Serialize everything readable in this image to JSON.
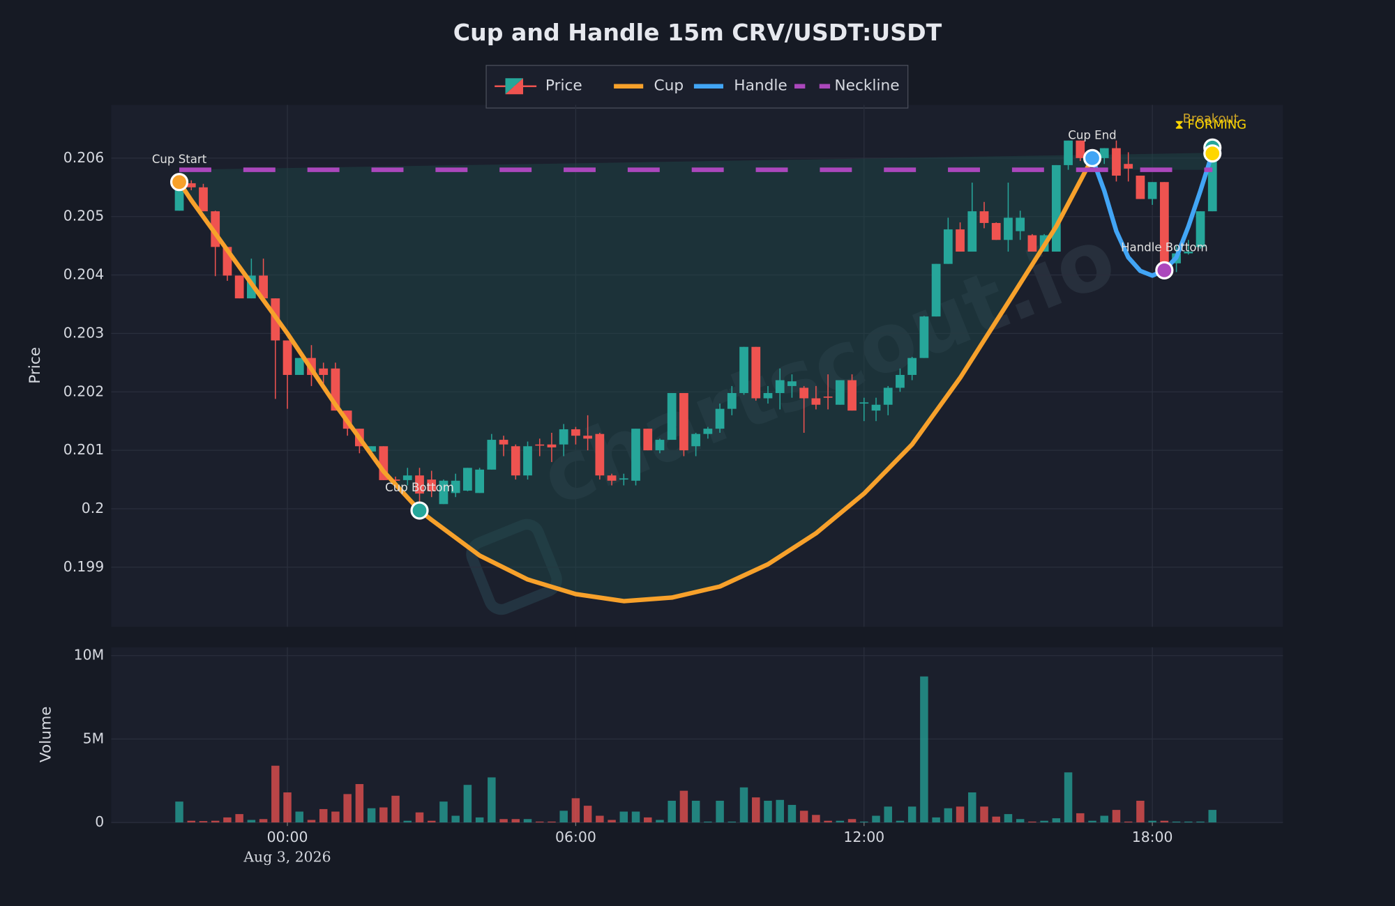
{
  "chart_data": {
    "type": "candlestick",
    "title": "Cup and Handle 15m CRV/USDT:USDT",
    "ylabel": "Price",
    "watermark": "chartscout.io",
    "x_sublabel": "Aug 3, 2026",
    "grid": true,
    "xlim": [
      "2026-08-02 20:20",
      "2026-08-03 20:43"
    ],
    "xticks": [
      {
        "value": "2026-08-03 00:00",
        "label": "00:00"
      },
      {
        "value": "2026-08-03 06:00",
        "label": "06:00"
      },
      {
        "value": "2026-08-03 12:00",
        "label": "12:00"
      },
      {
        "value": "2026-08-03 18:00",
        "label": "18:00"
      }
    ],
    "ylim": [
      0.19798,
      0.20691
    ],
    "yticks": [
      0.199,
      0.2,
      0.201,
      0.202,
      0.203,
      0.204,
      0.205,
      0.206
    ],
    "x": [
      "2026-08-02 21:45",
      "2026-08-02 22:00",
      "2026-08-02 22:15",
      "2026-08-02 22:30",
      "2026-08-02 22:45",
      "2026-08-02 23:00",
      "2026-08-02 23:15",
      "2026-08-02 23:30",
      "2026-08-02 23:45",
      "2026-08-03 00:00",
      "2026-08-03 00:15",
      "2026-08-03 00:30",
      "2026-08-03 00:45",
      "2026-08-03 01:00",
      "2026-08-03 01:15",
      "2026-08-03 01:30",
      "2026-08-03 01:45",
      "2026-08-03 02:00",
      "2026-08-03 02:15",
      "2026-08-03 02:30",
      "2026-08-03 02:45",
      "2026-08-03 03:00",
      "2026-08-03 03:15",
      "2026-08-03 03:30",
      "2026-08-03 03:45",
      "2026-08-03 04:00",
      "2026-08-03 04:15",
      "2026-08-03 04:30",
      "2026-08-03 04:45",
      "2026-08-03 05:00",
      "2026-08-03 05:15",
      "2026-08-03 05:30",
      "2026-08-03 05:45",
      "2026-08-03 06:00",
      "2026-08-03 06:15",
      "2026-08-03 06:30",
      "2026-08-03 06:45",
      "2026-08-03 07:00",
      "2026-08-03 07:15",
      "2026-08-03 07:30",
      "2026-08-03 07:45",
      "2026-08-03 08:00",
      "2026-08-03 08:15",
      "2026-08-03 08:30",
      "2026-08-03 08:45",
      "2026-08-03 09:00",
      "2026-08-03 09:15",
      "2026-08-03 09:30",
      "2026-08-03 09:45",
      "2026-08-03 10:00",
      "2026-08-03 10:15",
      "2026-08-03 10:30",
      "2026-08-03 10:45",
      "2026-08-03 11:00",
      "2026-08-03 11:15",
      "2026-08-03 11:30",
      "2026-08-03 11:45",
      "2026-08-03 12:00",
      "2026-08-03 12:15",
      "2026-08-03 12:30",
      "2026-08-03 12:45",
      "2026-08-03 13:00",
      "2026-08-03 13:15",
      "2026-08-03 13:30",
      "2026-08-03 13:45",
      "2026-08-03 14:00",
      "2026-08-03 14:15",
      "2026-08-03 14:30",
      "2026-08-03 14:45",
      "2026-08-03 15:00",
      "2026-08-03 15:15",
      "2026-08-03 15:30",
      "2026-08-03 15:45",
      "2026-08-03 16:00",
      "2026-08-03 16:15",
      "2026-08-03 16:30",
      "2026-08-03 16:45",
      "2026-08-03 17:00",
      "2026-08-03 17:15",
      "2026-08-03 17:30",
      "2026-08-03 17:45",
      "2026-08-03 18:00",
      "2026-08-03 18:15",
      "2026-08-03 18:30",
      "2026-08-03 18:45",
      "2026-08-03 19:00",
      "2026-08-03 19:15"
    ],
    "series": [
      {
        "name": "Price",
        "up_color": "#26a69a",
        "down_color": "#ef5350",
        "open": [
          0.2051,
          0.20557,
          0.2055,
          0.20509,
          0.20448,
          0.20399,
          0.2036,
          0.20399,
          0.2036,
          0.20288,
          0.20229,
          0.20258,
          0.2024,
          0.2024,
          0.20168,
          0.20137,
          0.20098,
          0.20107,
          0.2005,
          0.20049,
          0.20057,
          0.2005,
          0.20008,
          0.20027,
          0.20031,
          0.20027,
          0.20067,
          0.20118,
          0.20107,
          0.20057,
          0.2011,
          0.2011,
          0.2011,
          0.20136,
          0.20125,
          0.20128,
          0.20057,
          0.2005,
          0.20048,
          0.20137,
          0.201,
          0.20118,
          0.20198,
          0.20107,
          0.20128,
          0.20137,
          0.20171,
          0.20198,
          0.20277,
          0.20189,
          0.20198,
          0.2021,
          0.20207,
          0.20189,
          0.20192,
          0.20178,
          0.2022,
          0.2018,
          0.20168,
          0.20178,
          0.20207,
          0.20229,
          0.20258,
          0.20329,
          0.20419,
          0.20478,
          0.2044,
          0.20509,
          0.20489,
          0.2046,
          0.20475,
          0.20468,
          0.2044,
          0.2044,
          0.20588,
          0.2063,
          0.20598,
          0.206,
          0.20617,
          0.2059,
          0.2057,
          0.2053,
          0.20559,
          0.2042,
          0.20437,
          0.20448,
          0.20509
        ],
        "high": [
          0.2056,
          0.20562,
          0.20556,
          0.2051,
          0.20448,
          0.20399,
          0.20428,
          0.20428,
          0.2036,
          0.20288,
          0.20258,
          0.2028,
          0.2025,
          0.2025,
          0.20168,
          0.20137,
          0.20107,
          0.20107,
          0.20055,
          0.2007,
          0.2007,
          0.20065,
          0.2005,
          0.2006,
          0.2007,
          0.2007,
          0.20128,
          0.20125,
          0.2011,
          0.20115,
          0.2012,
          0.2013,
          0.20145,
          0.2014,
          0.2016,
          0.2013,
          0.2006,
          0.2006,
          0.20137,
          0.20137,
          0.2012,
          0.20198,
          0.20198,
          0.2013,
          0.2014,
          0.2018,
          0.2021,
          0.20277,
          0.20277,
          0.2021,
          0.2024,
          0.2023,
          0.2021,
          0.2021,
          0.2023,
          0.2022,
          0.2023,
          0.2019,
          0.2019,
          0.2021,
          0.2024,
          0.2026,
          0.2033,
          0.20419,
          0.20498,
          0.2049,
          0.20558,
          0.20525,
          0.2049,
          0.20558,
          0.2051,
          0.2047,
          0.2047,
          0.20588,
          0.2063,
          0.2063,
          0.2061,
          0.20617,
          0.2063,
          0.2061,
          0.2057,
          0.20559,
          0.20559,
          0.2045,
          0.2046,
          0.20509,
          0.20618
        ],
        "low": [
          0.2051,
          0.20545,
          0.20509,
          0.20398,
          0.2039,
          0.2036,
          0.2036,
          0.2036,
          0.20188,
          0.20171,
          0.20229,
          0.2021,
          0.2021,
          0.20168,
          0.20125,
          0.20095,
          0.2009,
          0.20049,
          0.20045,
          0.2004,
          0.2,
          0.2002,
          0.20008,
          0.2002,
          0.2003,
          0.20027,
          0.20067,
          0.2009,
          0.2005,
          0.2005,
          0.2009,
          0.2008,
          0.2009,
          0.2011,
          0.201,
          0.2005,
          0.2004,
          0.2004,
          0.2004,
          0.201,
          0.20095,
          0.20118,
          0.2009,
          0.2009,
          0.2012,
          0.2013,
          0.2016,
          0.20195,
          0.20185,
          0.2018,
          0.2017,
          0.2019,
          0.2013,
          0.2017,
          0.2017,
          0.20178,
          0.20168,
          0.2015,
          0.2015,
          0.2016,
          0.202,
          0.2022,
          0.20258,
          0.20329,
          0.20419,
          0.2044,
          0.2044,
          0.2048,
          0.2046,
          0.2044,
          0.2046,
          0.2044,
          0.2044,
          0.2044,
          0.2058,
          0.20595,
          0.2059,
          0.2059,
          0.2056,
          0.2056,
          0.2053,
          0.2052,
          0.20395,
          0.20405,
          0.20435,
          0.20445,
          0.20509
        ],
        "close": [
          0.20559,
          0.2055,
          0.20509,
          0.20448,
          0.20399,
          0.2036,
          0.20399,
          0.2036,
          0.20288,
          0.20229,
          0.20258,
          0.20229,
          0.20229,
          0.20168,
          0.20137,
          0.20107,
          0.20107,
          0.20049,
          0.20048,
          0.20057,
          0.20026,
          0.2003,
          0.20048,
          0.20048,
          0.2007,
          0.20067,
          0.20118,
          0.2011,
          0.20057,
          0.20107,
          0.20108,
          0.20105,
          0.20136,
          0.20125,
          0.2012,
          0.20057,
          0.20048,
          0.20052,
          0.20137,
          0.201,
          0.20118,
          0.20198,
          0.201,
          0.20128,
          0.20137,
          0.20171,
          0.20198,
          0.20277,
          0.20189,
          0.20198,
          0.2022,
          0.20218,
          0.20189,
          0.20178,
          0.2019,
          0.2022,
          0.20168,
          0.20182,
          0.20178,
          0.20207,
          0.20229,
          0.20258,
          0.20329,
          0.20419,
          0.20478,
          0.2044,
          0.20509,
          0.20489,
          0.2046,
          0.20498,
          0.20498,
          0.2044,
          0.20468,
          0.20588,
          0.2063,
          0.206,
          0.20603,
          0.20617,
          0.2057,
          0.20582,
          0.2053,
          0.20559,
          0.20408,
          0.20437,
          0.2044,
          0.20509,
          0.20618
        ]
      }
    ],
    "overlays": [
      {
        "name": "Cup",
        "color": "#f7a12b",
        "x": [
          "2026-08-02 21:45",
          "2026-08-02 22:00",
          "2026-08-02 23:00",
          "2026-08-03 00:00",
          "2026-08-03 01:00",
          "2026-08-03 02:00",
          "2026-08-03 02:45",
          "2026-08-03 03:00",
          "2026-08-03 04:00",
          "2026-08-03 05:00",
          "2026-08-03 06:00",
          "2026-08-03 07:00",
          "2026-08-03 08:00",
          "2026-08-03 09:00",
          "2026-08-03 10:00",
          "2026-08-03 11:00",
          "2026-08-03 12:00",
          "2026-08-03 13:00",
          "2026-08-03 14:00",
          "2026-08-03 15:00",
          "2026-08-03 16:00",
          "2026-08-03 16:45"
        ],
        "values": [
          0.20559,
          0.20528,
          0.20414,
          0.203,
          0.20178,
          0.20064,
          0.19997,
          0.19981,
          0.1992,
          0.19879,
          0.19854,
          0.19842,
          0.19848,
          0.19867,
          0.19905,
          0.19958,
          0.20026,
          0.2011,
          0.20224,
          0.20353,
          0.20483,
          0.206
        ]
      },
      {
        "name": "Handle",
        "color": "#42a5f5",
        "x": [
          "2026-08-03 16:45",
          "2026-08-03 17:00",
          "2026-08-03 17:15",
          "2026-08-03 17:30",
          "2026-08-03 17:45",
          "2026-08-03 18:00",
          "2026-08-03 18:15",
          "2026-08-03 18:30",
          "2026-08-03 18:45",
          "2026-08-03 19:00",
          "2026-08-03 19:15"
        ],
        "values": [
          0.206,
          0.20544,
          0.20475,
          0.2043,
          0.20407,
          0.20399,
          0.20408,
          0.2043,
          0.20483,
          0.20544,
          0.20609
        ]
      },
      {
        "name": "Neckline",
        "color": "#ab47bc",
        "dashed": true,
        "x": [
          "2026-08-02 21:45",
          "2026-08-03 19:15"
        ],
        "values": [
          0.2058,
          0.2058
        ]
      }
    ],
    "points": [
      {
        "label": "Cup Start",
        "x": "2026-08-02 21:45",
        "value": 0.20559,
        "color": "#f7a12b",
        "label_color": "#e0e0e0"
      },
      {
        "label": "Cup Bottom",
        "x": "2026-08-03 02:45",
        "value": 0.19997,
        "color": "#26a69a",
        "label_color": "#e0e0e0"
      },
      {
        "label": "Cup End",
        "x": "2026-08-03 16:45",
        "value": 0.206,
        "color": "#42a5f5",
        "label_color": "#e0e0e0"
      },
      {
        "label": "Handle Bottom",
        "x": "2026-08-03 18:15",
        "value": 0.20408,
        "color": "#ab47bc",
        "label_color": "#e0e0e0"
      },
      {
        "label": "Breakout",
        "x": "2026-08-03 19:15",
        "value": 0.20618,
        "color": "#26a69a",
        "label_color": "#c9a227"
      },
      {
        "label": "⧗ FORMING",
        "x": "2026-08-03 19:15",
        "value": 0.20608,
        "color": "#ffd600",
        "label_color": "#ffd600"
      }
    ],
    "volume": {
      "ylabel": "Volume",
      "ylim": [
        0,
        10500000
      ],
      "yticks": [
        0,
        {
          "value": 5000000,
          "label": "5M"
        },
        {
          "value": 10000000,
          "label": "10M"
        }
      ],
      "values": [
        1250000,
        100000,
        80000,
        100000,
        300000,
        500000,
        150000,
        200000,
        3400000,
        1800000,
        650000,
        150000,
        800000,
        650000,
        1700000,
        2300000,
        850000,
        900000,
        1600000,
        100000,
        600000,
        100000,
        1250000,
        400000,
        2250000,
        300000,
        2700000,
        200000,
        200000,
        200000,
        50000,
        50000,
        700000,
        1450000,
        1000000,
        400000,
        150000,
        650000,
        650000,
        300000,
        150000,
        1300000,
        1900000,
        1300000,
        50000,
        1300000,
        50000,
        2100000,
        1500000,
        1300000,
        1350000,
        1050000,
        700000,
        450000,
        100000,
        100000,
        200000,
        50000,
        400000,
        950000,
        100000,
        950000,
        8750000,
        300000,
        850000,
        950000,
        1800000,
        950000,
        350000,
        500000,
        200000,
        50000,
        100000,
        250000,
        3000000,
        550000,
        100000,
        400000,
        750000,
        50000,
        1300000,
        100000,
        100000,
        50000,
        50000,
        50000,
        750000
      ]
    }
  }
}
